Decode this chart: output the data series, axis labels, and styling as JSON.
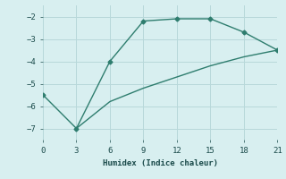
{
  "line1_x": [
    0,
    3,
    6,
    9,
    12,
    15,
    18,
    21
  ],
  "line1_y": [
    -5.5,
    -7,
    -4,
    -2.2,
    -2.1,
    -2.1,
    -2.7,
    -3.5
  ],
  "line2_x": [
    3,
    6,
    9,
    12,
    15,
    18,
    21
  ],
  "line2_y": [
    -7,
    -5.8,
    -5.2,
    -4.7,
    -4.2,
    -3.8,
    -3.5
  ],
  "line_color": "#2e7d6e",
  "bg_color": "#d8eff0",
  "grid_color": "#b8d8da",
  "xlabel": "Humidex (Indice chaleur)",
  "xlim": [
    0,
    21
  ],
  "ylim": [
    -7.5,
    -1.5
  ],
  "xticks": [
    0,
    3,
    6,
    9,
    12,
    15,
    18,
    21
  ],
  "yticks": [
    -7,
    -6,
    -5,
    -4,
    -3,
    -2
  ],
  "marker": "D",
  "markersize": 2.5,
  "linewidth": 1.0
}
